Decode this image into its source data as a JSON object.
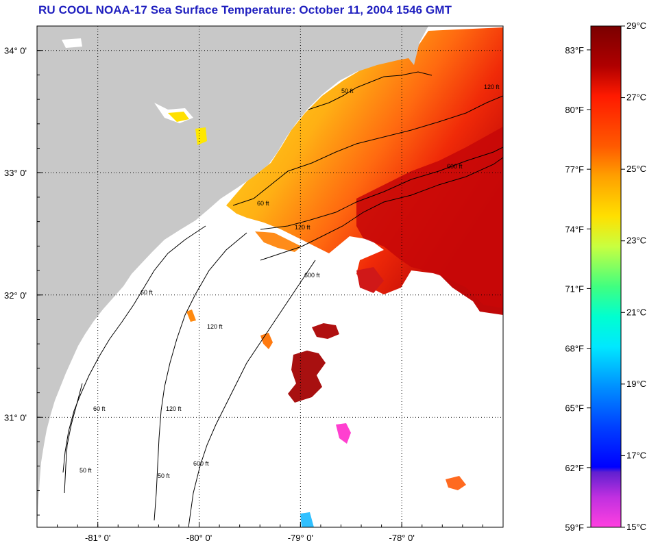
{
  "title": "RU COOL  NOAA-17  Sea Surface Temperature:  October 11, 2004 1546 GMT",
  "map": {
    "lon_range": [
      -81.6,
      -77.0
    ],
    "lat_range": [
      30.1,
      34.2
    ],
    "lon_ticks": [
      {
        "value": -81,
        "label": "-81° 0'"
      },
      {
        "value": -80,
        "label": "-80° 0'"
      },
      {
        "value": -79,
        "label": "-79° 0'"
      },
      {
        "value": -78,
        "label": "-78° 0'"
      }
    ],
    "lat_ticks": [
      {
        "value": 34,
        "label": "34° 0'"
      },
      {
        "value": 33,
        "label": "33° 0'"
      },
      {
        "value": 32,
        "label": "32° 0'"
      },
      {
        "value": 31,
        "label": "31° 0'"
      }
    ],
    "grid": "dotted",
    "land_color": "#c8c8c8",
    "contour_labels": [
      "50 ft",
      "60 ft",
      "120 ft",
      "600 ft"
    ]
  },
  "colorbar": {
    "celsius_labels": [
      "29°C",
      "27°C",
      "25°C",
      "23°C",
      "21°C",
      "19°C",
      "17°C",
      "15°C"
    ],
    "fahrenheit_labels": [
      "83°F",
      "80°F",
      "77°F",
      "74°F",
      "71°F",
      "68°F",
      "65°F",
      "62°F",
      "59°F"
    ],
    "range_celsius": [
      15,
      29
    ]
  }
}
